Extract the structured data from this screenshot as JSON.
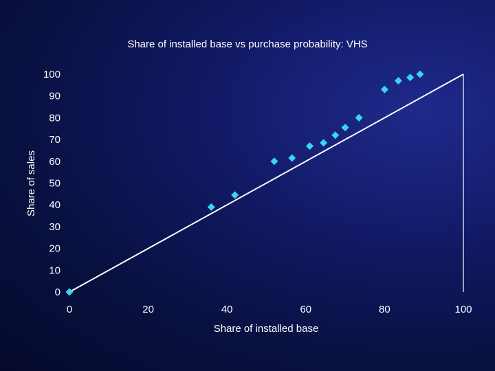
{
  "chart_data": {
    "type": "scatter",
    "title": "Share of installed base vs purchase probability: VHS",
    "xlabel": "Share of installed base",
    "ylabel": "Share of sales",
    "xlim": [
      0,
      100
    ],
    "ylim": [
      0,
      100
    ],
    "x_ticks": [
      "0",
      "20",
      "40",
      "60",
      "80",
      "100"
    ],
    "y_ticks": [
      "0",
      "10",
      "20",
      "30",
      "40",
      "50",
      "60",
      "70",
      "80",
      "90",
      "100"
    ],
    "grid": false,
    "legend": "none",
    "marker_color": "#3ad6f0",
    "line_color": "#ffffff",
    "series": [
      {
        "values": [
          {
            "x": 0,
            "y": 0
          },
          {
            "x": 36,
            "y": 39
          },
          {
            "x": 42,
            "y": 44.5
          },
          {
            "x": 52,
            "y": 60
          },
          {
            "x": 56.5,
            "y": 61.5
          },
          {
            "x": 61,
            "y": 67
          },
          {
            "x": 64.5,
            "y": 68.5
          },
          {
            "x": 67.5,
            "y": 72
          },
          {
            "x": 70,
            "y": 75.5
          },
          {
            "x": 73.5,
            "y": 80
          },
          {
            "x": 80,
            "y": 93
          },
          {
            "x": 83.5,
            "y": 97
          },
          {
            "x": 86.5,
            "y": 98.5
          },
          {
            "x": 89,
            "y": 100
          }
        ]
      }
    ],
    "reference_line": {
      "from": [
        0,
        0
      ],
      "to": [
        100,
        100
      ]
    }
  }
}
